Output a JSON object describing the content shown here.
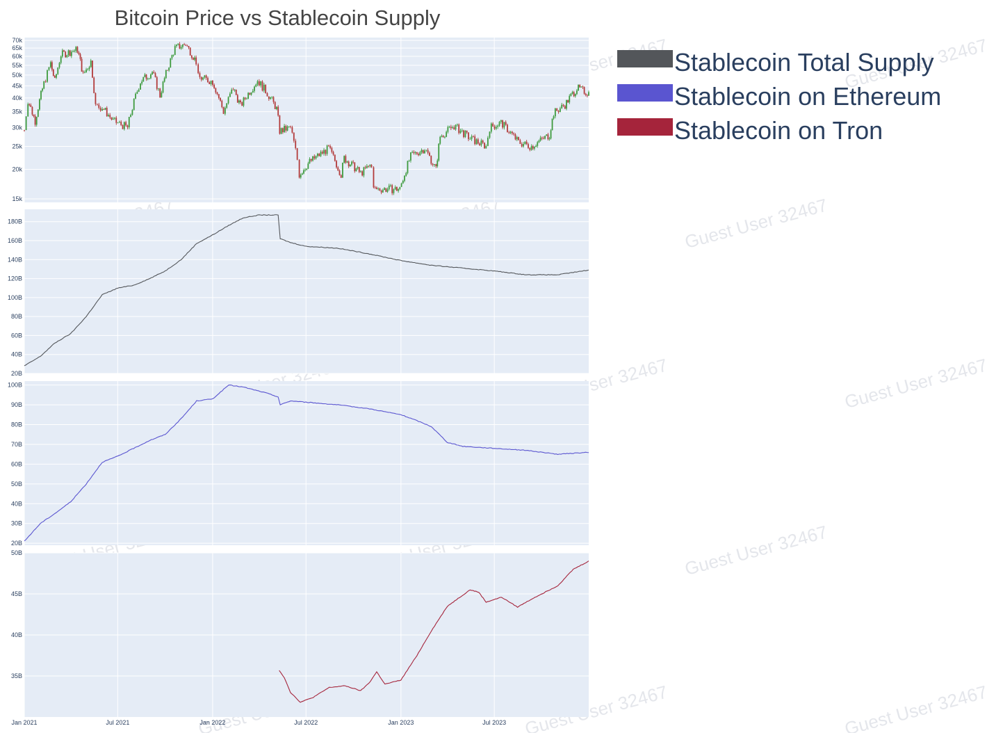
{
  "chart_data": {
    "type": "line",
    "title": "Bitcoin Price vs Stablecoin Supply",
    "x_ticks": [
      "Jan 2021",
      "Jul 2021",
      "Jan 2022",
      "Jul 2022",
      "Jan 2023",
      "Jul 2023"
    ],
    "x_range": [
      "2021-01-01",
      "2023-12-31"
    ],
    "legend": [
      {
        "label": "Stablecoin Total Supply",
        "color": "#53565a"
      },
      {
        "label": "Stablecoin on Ethereum",
        "color": "#5a55d0"
      },
      {
        "label": "Stablecoin on Tron",
        "color": "#a5243b"
      }
    ],
    "legend_placement": "top-right",
    "watermark": "Guest User 32467",
    "panels": [
      {
        "name": "Bitcoin Price",
        "type": "candlestick",
        "y_scale": "log",
        "y_ticks": [
          "15k",
          "20k",
          "25k",
          "30k",
          "35k",
          "40k",
          "45k",
          "50k",
          "55k",
          "60k",
          "65k",
          "70k"
        ],
        "y_tick_values": [
          15000,
          20000,
          25000,
          30000,
          35000,
          40000,
          45000,
          50000,
          55000,
          60000,
          65000,
          70000
        ],
        "ylim": [
          14500,
          72000
        ],
        "up_color": "#3d9a3d",
        "down_color": "#b23a3a",
        "points": [
          [
            "2021-01-01",
            29300
          ],
          [
            "2021-01-08",
            39000
          ],
          [
            "2021-01-22",
            32000
          ],
          [
            "2021-02-08",
            46000
          ],
          [
            "2021-02-21",
            56000
          ],
          [
            "2021-03-01",
            47000
          ],
          [
            "2021-03-13",
            61000
          ],
          [
            "2021-04-14",
            64000
          ],
          [
            "2021-04-25",
            50000
          ],
          [
            "2021-05-10",
            57000
          ],
          [
            "2021-05-19",
            37000
          ],
          [
            "2021-06-01",
            36500
          ],
          [
            "2021-06-22",
            32000
          ],
          [
            "2021-07-20",
            30000
          ],
          [
            "2021-08-14",
            47000
          ],
          [
            "2021-09-06",
            51500
          ],
          [
            "2021-09-21",
            41000
          ],
          [
            "2021-10-20",
            65000
          ],
          [
            "2021-11-10",
            67500
          ],
          [
            "2021-11-30",
            57000
          ],
          [
            "2021-12-04",
            49000
          ],
          [
            "2022-01-01",
            47000
          ],
          [
            "2022-01-22",
            35000
          ],
          [
            "2022-02-10",
            44000
          ],
          [
            "2022-02-24",
            37000
          ],
          [
            "2022-03-29",
            47500
          ],
          [
            "2022-04-20",
            41000
          ],
          [
            "2022-05-05",
            36000
          ],
          [
            "2022-05-11",
            29000
          ],
          [
            "2022-06-01",
            30000
          ],
          [
            "2022-06-14",
            22000
          ],
          [
            "2022-06-18",
            19000
          ],
          [
            "2022-07-08",
            21500
          ],
          [
            "2022-08-14",
            24500
          ],
          [
            "2022-09-07",
            19000
          ],
          [
            "2022-09-13",
            22300
          ],
          [
            "2022-10-15",
            19200
          ],
          [
            "2022-11-05",
            21000
          ],
          [
            "2022-11-09",
            16500
          ],
          [
            "2022-12-30",
            16500
          ],
          [
            "2023-01-20",
            22700
          ],
          [
            "2023-02-16",
            24500
          ],
          [
            "2023-03-10",
            20000
          ],
          [
            "2023-03-18",
            27500
          ],
          [
            "2023-04-14",
            30500
          ],
          [
            "2023-05-15",
            27000
          ],
          [
            "2023-06-15",
            25000
          ],
          [
            "2023-06-22",
            30000
          ],
          [
            "2023-07-14",
            31500
          ],
          [
            "2023-08-17",
            26000
          ],
          [
            "2023-09-11",
            25000
          ],
          [
            "2023-10-16",
            28000
          ],
          [
            "2023-10-24",
            34500
          ],
          [
            "2023-11-15",
            37500
          ],
          [
            "2023-12-08",
            44000
          ],
          [
            "2023-12-31",
            42000
          ]
        ]
      },
      {
        "name": "Stablecoin Total Supply",
        "y_ticks": [
          "20B",
          "40B",
          "60B",
          "80B",
          "100B",
          "120B",
          "140B",
          "160B",
          "180B"
        ],
        "y_tick_values": [
          20,
          40,
          60,
          80,
          100,
          120,
          140,
          160,
          180
        ],
        "ylim": [
          20,
          193
        ],
        "color": "#53565a",
        "points": [
          [
            "2021-01-01",
            28
          ],
          [
            "2021-02-01",
            38
          ],
          [
            "2021-03-01",
            52
          ],
          [
            "2021-04-01",
            62
          ],
          [
            "2021-05-01",
            80
          ],
          [
            "2021-06-01",
            103
          ],
          [
            "2021-07-01",
            110
          ],
          [
            "2021-08-01",
            113
          ],
          [
            "2021-09-01",
            120
          ],
          [
            "2021-10-01",
            128
          ],
          [
            "2021-11-01",
            140
          ],
          [
            "2021-12-01",
            157
          ],
          [
            "2022-01-01",
            166
          ],
          [
            "2022-02-01",
            176
          ],
          [
            "2022-03-01",
            184
          ],
          [
            "2022-04-01",
            187
          ],
          [
            "2022-05-08",
            187
          ],
          [
            "2022-05-12",
            162
          ],
          [
            "2022-06-01",
            158
          ],
          [
            "2022-07-01",
            154
          ],
          [
            "2022-09-01",
            152
          ],
          [
            "2022-11-01",
            146
          ],
          [
            "2023-01-01",
            139
          ],
          [
            "2023-03-01",
            134
          ],
          [
            "2023-05-01",
            131
          ],
          [
            "2023-07-01",
            128
          ],
          [
            "2023-09-01",
            124
          ],
          [
            "2023-11-01",
            124
          ],
          [
            "2023-12-31",
            129
          ]
        ]
      },
      {
        "name": "Stablecoin on Ethereum",
        "y_ticks": [
          "20B",
          "30B",
          "40B",
          "50B",
          "60B",
          "70B",
          "80B",
          "90B",
          "100B"
        ],
        "y_tick_values": [
          20,
          30,
          40,
          50,
          60,
          70,
          80,
          90,
          100
        ],
        "ylim": [
          19,
          102
        ],
        "color": "#5a55d0",
        "points": [
          [
            "2021-01-01",
            21
          ],
          [
            "2021-02-01",
            30
          ],
          [
            "2021-03-01",
            35
          ],
          [
            "2021-04-01",
            41
          ],
          [
            "2021-05-01",
            50
          ],
          [
            "2021-06-01",
            61
          ],
          [
            "2021-07-01",
            64
          ],
          [
            "2021-08-01",
            68
          ],
          [
            "2021-09-01",
            72
          ],
          [
            "2021-10-01",
            75
          ],
          [
            "2021-11-01",
            83
          ],
          [
            "2021-12-01",
            92
          ],
          [
            "2022-01-01",
            93
          ],
          [
            "2022-02-01",
            100
          ],
          [
            "2022-03-01",
            99
          ],
          [
            "2022-04-15",
            96
          ],
          [
            "2022-05-08",
            94
          ],
          [
            "2022-05-12",
            90
          ],
          [
            "2022-06-01",
            92
          ],
          [
            "2022-09-01",
            90
          ],
          [
            "2022-11-01",
            88
          ],
          [
            "2023-01-01",
            85
          ],
          [
            "2023-02-01",
            82
          ],
          [
            "2023-03-01",
            79
          ],
          [
            "2023-04-01",
            71
          ],
          [
            "2023-05-01",
            69
          ],
          [
            "2023-07-01",
            68
          ],
          [
            "2023-09-01",
            67
          ],
          [
            "2023-11-01",
            65
          ],
          [
            "2023-12-31",
            66
          ]
        ]
      },
      {
        "name": "Stablecoin on Tron",
        "y_ticks": [
          "35B",
          "40B",
          "45B",
          "50B"
        ],
        "y_tick_values": [
          35,
          40,
          45,
          50
        ],
        "ylim": [
          30,
          50
        ],
        "color": "#a5243b",
        "points": [
          [
            "2022-05-10",
            35.7
          ],
          [
            "2022-05-20",
            34.8
          ],
          [
            "2022-06-01",
            33.0
          ],
          [
            "2022-06-20",
            31.8
          ],
          [
            "2022-07-15",
            32.4
          ],
          [
            "2022-08-15",
            33.6
          ],
          [
            "2022-09-15",
            33.8
          ],
          [
            "2022-10-15",
            33.2
          ],
          [
            "2022-11-01",
            34.2
          ],
          [
            "2022-11-15",
            35.5
          ],
          [
            "2022-12-01",
            34.0
          ],
          [
            "2023-01-01",
            34.5
          ],
          [
            "2023-02-01",
            37.5
          ],
          [
            "2023-03-01",
            40.5
          ],
          [
            "2023-04-01",
            43.5
          ],
          [
            "2023-05-15",
            45.5
          ],
          [
            "2023-06-01",
            45.2
          ],
          [
            "2023-06-15",
            44.0
          ],
          [
            "2023-07-15",
            44.6
          ],
          [
            "2023-08-15",
            43.4
          ],
          [
            "2023-09-15",
            44.5
          ],
          [
            "2023-11-01",
            46.0
          ],
          [
            "2023-12-01",
            48.0
          ],
          [
            "2023-12-31",
            49.0
          ]
        ]
      }
    ]
  }
}
